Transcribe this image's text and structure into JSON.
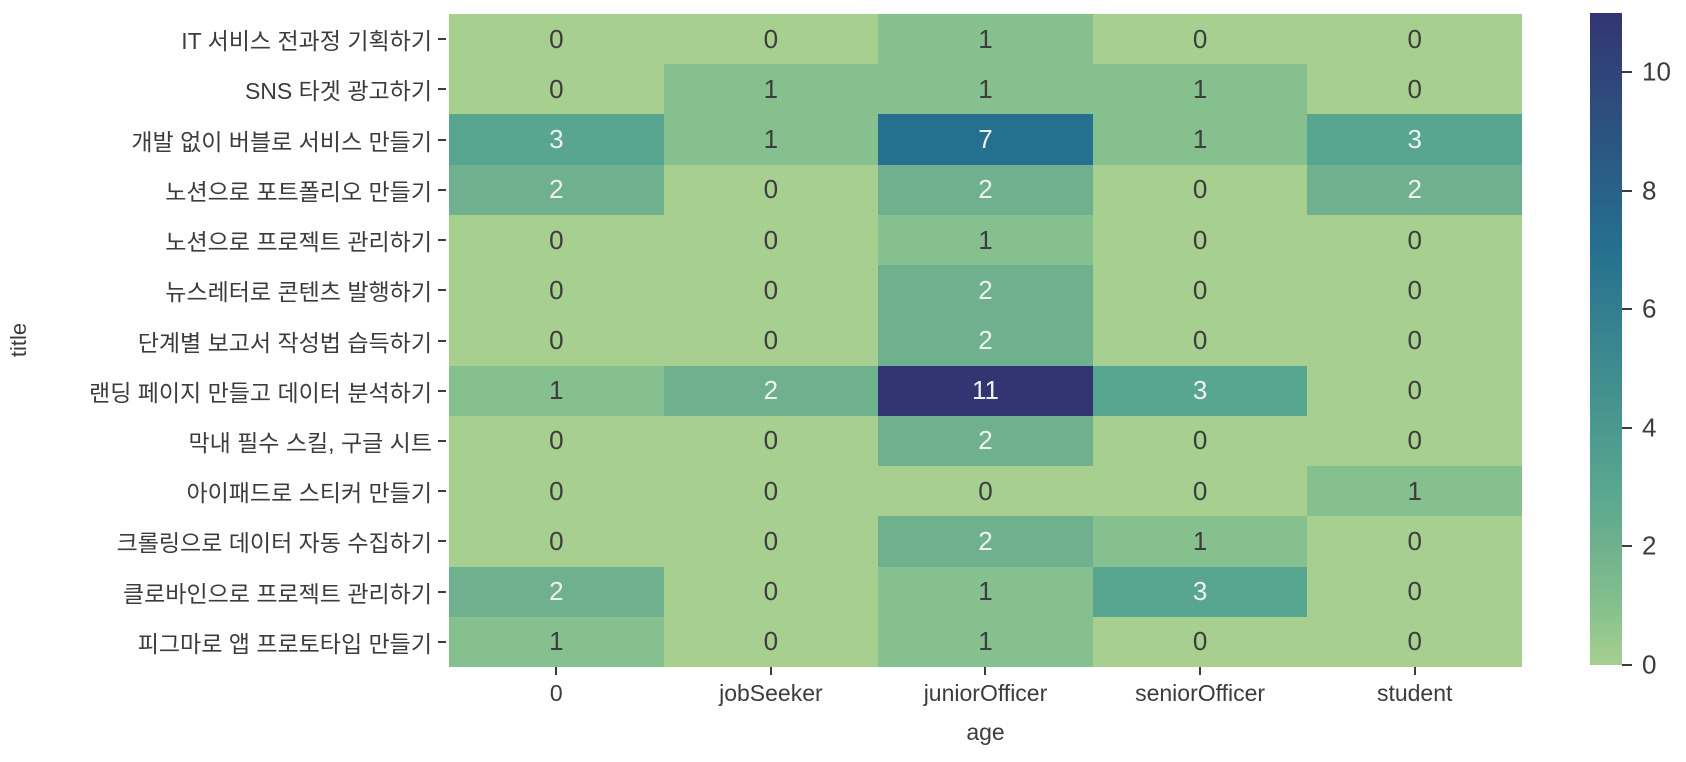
{
  "chart_data": {
    "type": "heatmap",
    "title": "",
    "xlabel": "age",
    "ylabel": "title",
    "x_categories": [
      "0",
      "jobSeeker",
      "juniorOfficer",
      "seniorOfficer",
      "student"
    ],
    "y_categories": [
      "IT 서비스 전과정 기획하기",
      "SNS 타겟 광고하기",
      "개발 없이 버블로 서비스 만들기",
      "노션으로 포트폴리오 만들기",
      "노션으로 프로젝트 관리하기",
      "뉴스레터로 콘텐츠 발행하기",
      "단계별 보고서 작성법 습득하기",
      "랜딩 페이지 만들고 데이터 분석하기",
      "막내 필수 스킬, 구글 시트",
      "아이패드로 스티커 만들기",
      "크롤링으로 데이터 자동 수집하기",
      "클로바인으로 프로젝트 관리하기",
      "피그마로 앱 프로토타입 만들기"
    ],
    "values": [
      [
        0,
        0,
        1,
        0,
        0
      ],
      [
        0,
        1,
        1,
        1,
        0
      ],
      [
        3,
        1,
        7,
        1,
        3
      ],
      [
        2,
        0,
        2,
        0,
        2
      ],
      [
        0,
        0,
        1,
        0,
        0
      ],
      [
        0,
        0,
        2,
        0,
        0
      ],
      [
        0,
        0,
        2,
        0,
        0
      ],
      [
        1,
        2,
        11,
        3,
        0
      ],
      [
        0,
        0,
        2,
        0,
        0
      ],
      [
        0,
        0,
        0,
        0,
        1
      ],
      [
        0,
        0,
        2,
        1,
        0
      ],
      [
        2,
        0,
        1,
        3,
        0
      ],
      [
        1,
        0,
        1,
        0,
        0
      ]
    ],
    "vmin": 0,
    "vmax": 11,
    "annotations": true,
    "grid": false,
    "colorbar_ticks": [
      0,
      2,
      4,
      6,
      8,
      10
    ],
    "colormap_anchors": [
      {
        "value": 0,
        "color": "#a6cf90"
      },
      {
        "value": 1,
        "color": "#85c08e"
      },
      {
        "value": 2,
        "color": "#6fb18e"
      },
      {
        "value": 3,
        "color": "#58a68f"
      },
      {
        "value": 7,
        "color": "#25708f"
      },
      {
        "value": 11,
        "color": "#333573"
      }
    ],
    "annotation_colors": {
      "dark": "#3d3d3d",
      "light": "#eef3ee",
      "light_threshold": 2
    },
    "axis_text_color": "#3c3c3c"
  }
}
